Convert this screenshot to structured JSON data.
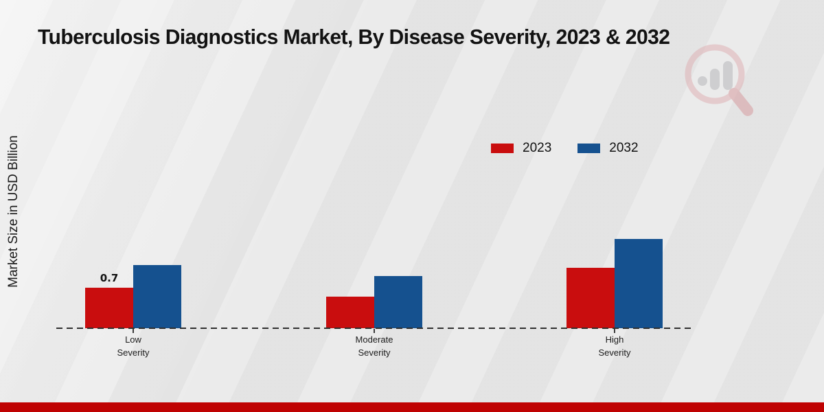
{
  "chart_data": {
    "type": "bar",
    "title": "Tuberculosis Diagnostics Market, By Disease Severity, 2023 & 2032",
    "ylabel": "Market Size in USD Billion",
    "xlabel": "",
    "categories": [
      "Low Severity",
      "Moderate Severity",
      "High Severity"
    ],
    "series": [
      {
        "name": "2023",
        "color": "#c90d0e",
        "values": [
          0.7,
          0.55,
          1.05
        ],
        "data_labels": [
          "0.7",
          "",
          ""
        ]
      },
      {
        "name": "2032",
        "color": "#15518f",
        "values": [
          1.1,
          0.9,
          1.55
        ],
        "data_labels": [
          "",
          "",
          ""
        ]
      }
    ],
    "ylim": [
      0,
      1.75
    ],
    "grid": false,
    "legend_position": "top-right",
    "baseline_style": "dashed",
    "y_ticks_visible": false
  },
  "colors": {
    "background": "#e8e8e8",
    "footer_bar": "#bf0202",
    "axis": "#2f2f2f",
    "series_2023": "#c90d0e",
    "series_2032": "#15518f"
  },
  "watermark": {
    "name": "magnifier-bar-chart-logo"
  }
}
